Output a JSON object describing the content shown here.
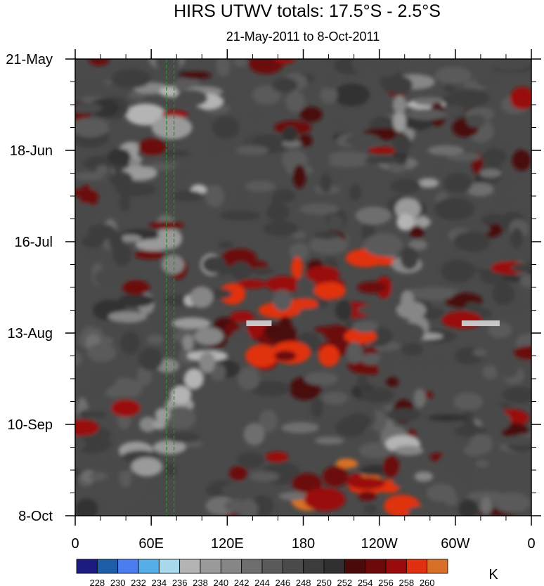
{
  "chart_data": {
    "type": "heatmap",
    "title": "HIRS UTWV totals: 17.5°S - 2.5°S",
    "subtitle": "21-May-2011 to 8-Oct-2011",
    "xlabel": "",
    "ylabel": "",
    "x_ticks": [
      "0",
      "60E",
      "120E",
      "180",
      "120W",
      "60W",
      "0"
    ],
    "x_tick_values": [
      0,
      60,
      120,
      180,
      240,
      300,
      360
    ],
    "xlim": [
      0,
      360
    ],
    "y_ticks": [
      "21-May",
      "18-Jun",
      "16-Jul",
      "13-Aug",
      "10-Sep",
      "8-Oct"
    ],
    "y_tick_values": [
      "2011-05-21",
      "2011-06-18",
      "2011-07-16",
      "2011-08-13",
      "2011-09-10",
      "2011-10-08"
    ],
    "ylim": [
      "2011-05-21",
      "2011-10-08"
    ],
    "y_reversed": true,
    "colorbar": {
      "unit": "K",
      "levels": [
        228,
        230,
        232,
        234,
        236,
        238,
        240,
        242,
        244,
        246,
        248,
        250,
        252,
        254,
        256,
        258,
        260
      ],
      "colors": [
        "#1c1c80",
        "#1e5ea8",
        "#4a7df0",
        "#56aee8",
        "#a8d8ec",
        "#b4b4b4",
        "#9a9a9a",
        "#868686",
        "#6e6e6e",
        "#5a5a5a",
        "#4a4a4a",
        "#3c3c3c",
        "#303030",
        "#4a0a0a",
        "#6c0a0a",
        "#9a0c0c",
        "#e03010",
        "#d87028"
      ]
    },
    "reference_lines": {
      "longitudes": [
        72,
        78
      ],
      "color": "#2e8b2e",
      "style": "dashed"
    },
    "missing_data": [
      {
        "lon": [
          135,
          155
        ],
        "date": "2011-08-10"
      },
      {
        "lon": [
          305,
          335
        ],
        "date": "2011-08-10"
      }
    ],
    "features": [
      {
        "lon": [
          0,
          360
        ],
        "date": [
          "2011-05-21",
          "2011-10-08"
        ],
        "kelvin": 247
      },
      {
        "lon": [
          120,
          260
        ],
        "date": [
          "2011-07-20",
          "2011-08-25"
        ],
        "kelvin": 257
      },
      {
        "lon": [
          150,
          260
        ],
        "date": [
          "2011-09-20",
          "2011-10-08"
        ],
        "kelvin": 258
      },
      {
        "lon": [
          40,
          110
        ],
        "date": [
          "2011-05-21",
          "2011-10-08"
        ],
        "kelvin": 239
      },
      {
        "lon": [
          250,
          280
        ],
        "date": [
          "2011-05-21",
          "2011-10-08"
        ],
        "kelvin": 240
      }
    ]
  }
}
